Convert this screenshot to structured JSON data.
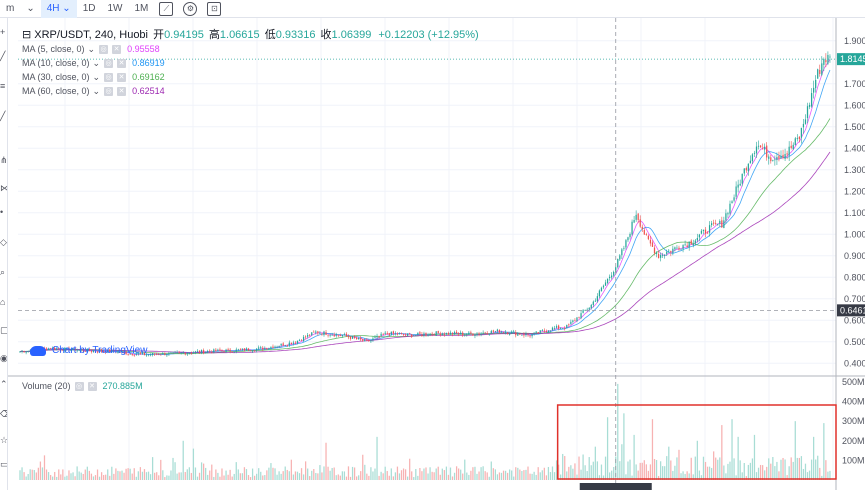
{
  "toolbar": {
    "items": [
      "m",
      "4H",
      "1D",
      "1W",
      "1M"
    ],
    "active": "4H",
    "icons": [
      "compare-icon",
      "settings-icon",
      "screenshot-icon"
    ]
  },
  "legend": {
    "symbol": "XRP/USDT, 240, Huobi",
    "open_label": "开",
    "open": "0.94195",
    "high_label": "高",
    "high": "1.06615",
    "low_label": "低",
    "low": "0.93316",
    "close_label": "收",
    "close": "1.06399",
    "change": "+0.12203 (+12.95%)"
  },
  "indicators": [
    {
      "label": "MA (5, close, 0)",
      "value": "0.95558",
      "color": "#e040fb"
    },
    {
      "label": "MA (10, close, 0)",
      "value": "0.86919",
      "color": "#2196f3"
    },
    {
      "label": "MA (30, close, 0)",
      "value": "0.69162",
      "color": "#4caf50"
    },
    {
      "label": "MA (60, close, 0)",
      "value": "0.62514",
      "color": "#9c27b0"
    }
  ],
  "volume_legend": {
    "label": "Volume (20)",
    "value": "270.885M"
  },
  "watermark": "Chart by TradingView",
  "price_axis": {
    "ticks": [
      "0.4000",
      "0.5000",
      "0.6000",
      "0.7000",
      "0.8000",
      "0.9000",
      "1.0000",
      "1.1000",
      "1.2000",
      "1.3000",
      "1.4000",
      "1.5000",
      "1.6000",
      "1.7000",
      "1.9000"
    ],
    "last_price": "1.8145",
    "crosshair_price": "0.6461"
  },
  "volume_axis": {
    "ticks": [
      "100M",
      "200M",
      "300M",
      "400M",
      "500M"
    ]
  },
  "colors": {
    "up": "#26a69a",
    "down": "#ef5350",
    "up_vol": "#a8ddd5",
    "down_vol": "#f7b2b2",
    "highlight": "#e0312b"
  },
  "chart_data": {
    "type": "candlestick",
    "price_ylim": [
      0.35,
      1.95
    ],
    "volume_ylim": [
      0,
      520
    ],
    "volume_unit": "M",
    "anchors": [
      [
        0,
        0.455
      ],
      [
        15,
        0.47
      ],
      [
        30,
        0.46
      ],
      [
        45,
        0.455
      ],
      [
        60,
        0.44
      ],
      [
        75,
        0.445
      ],
      [
        90,
        0.455
      ],
      [
        105,
        0.46
      ],
      [
        120,
        0.47
      ],
      [
        135,
        0.5
      ],
      [
        145,
        0.545
      ],
      [
        158,
        0.53
      ],
      [
        170,
        0.5
      ],
      [
        180,
        0.54
      ],
      [
        190,
        0.53
      ],
      [
        205,
        0.54
      ],
      [
        220,
        0.535
      ],
      [
        235,
        0.55
      ],
      [
        250,
        0.53
      ],
      [
        260,
        0.56
      ],
      [
        268,
        0.57
      ],
      [
        274,
        0.62
      ],
      [
        280,
        0.67
      ],
      [
        286,
        0.76
      ],
      [
        292,
        0.85
      ],
      [
        297,
        0.96
      ],
      [
        302,
        1.1
      ],
      [
        307,
        0.98
      ],
      [
        313,
        0.9
      ],
      [
        320,
        0.93
      ],
      [
        330,
        0.97
      ],
      [
        338,
        1.03
      ],
      [
        344,
        1.05
      ],
      [
        350,
        1.18
      ],
      [
        356,
        1.32
      ],
      [
        361,
        1.42
      ],
      [
        368,
        1.36
      ],
      [
        376,
        1.38
      ],
      [
        382,
        1.45
      ],
      [
        386,
        1.58
      ],
      [
        390,
        1.72
      ],
      [
        394,
        1.82
      ],
      [
        397,
        1.814
      ]
    ],
    "volume_spikes": [
      [
        80,
        200
      ],
      [
        85,
        160
      ],
      [
        150,
        190
      ],
      [
        175,
        220
      ],
      [
        263,
        100
      ],
      [
        276,
        130
      ],
      [
        282,
        170
      ],
      [
        288,
        320
      ],
      [
        293,
        490
      ],
      [
        296,
        340
      ],
      [
        301,
        230
      ],
      [
        310,
        310
      ],
      [
        318,
        170
      ],
      [
        332,
        200
      ],
      [
        344,
        280
      ],
      [
        349,
        310
      ],
      [
        352,
        220
      ],
      [
        360,
        230
      ],
      [
        380,
        300
      ],
      [
        389,
        220
      ],
      [
        394,
        290
      ]
    ],
    "ma_periods": [
      5,
      10,
      30,
      60
    ],
    "annotation": {
      "type": "highlight-box",
      "target": "volume",
      "x_range": [
        265,
        398
      ]
    }
  }
}
